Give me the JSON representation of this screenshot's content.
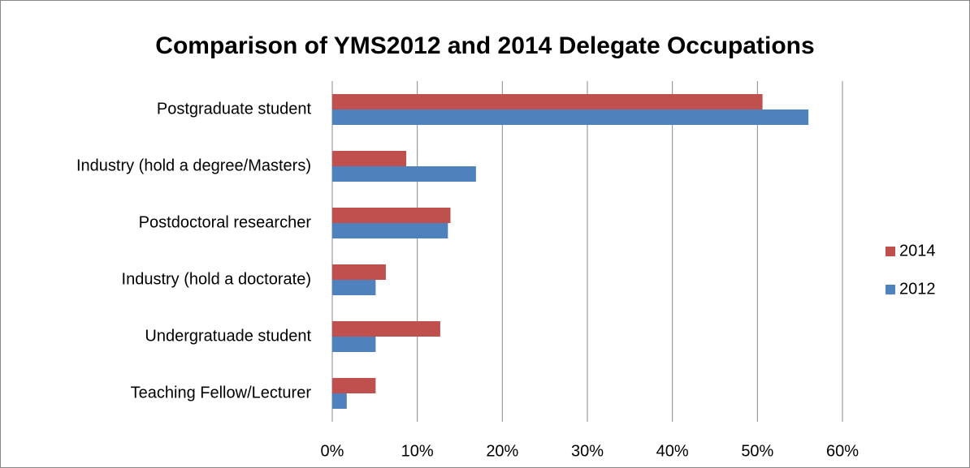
{
  "chart_data": {
    "type": "hbar",
    "title": "Comparison of YMS2012 and 2014 Delegate Occupations",
    "categories": [
      "Postgraduate student",
      "Industry (hold a degree/Masters)",
      "Postdoctoral researcher",
      "Industry (hold a doctorate)",
      "Undergratuade student",
      "Teaching Fellow/Lecturer"
    ],
    "series": [
      {
        "name": "2014",
        "color": "#c0504d",
        "values": [
          50.6,
          8.7,
          13.9,
          6.3,
          12.7,
          5.1
        ]
      },
      {
        "name": "2012",
        "color": "#4f81bd",
        "values": [
          56,
          16.9,
          13.6,
          5.1,
          5.1,
          1.7
        ]
      }
    ],
    "xlim": [
      0,
      60
    ],
    "xticks": [
      {
        "value": 0,
        "label": "0%"
      },
      {
        "value": 10,
        "label": "10%"
      },
      {
        "value": 20,
        "label": "20%"
      },
      {
        "value": 30,
        "label": "30%"
      },
      {
        "value": 40,
        "label": "40%"
      },
      {
        "value": 50,
        "label": "50%"
      },
      {
        "value": 60,
        "label": "60%"
      }
    ],
    "grid": true,
    "legend": "right"
  }
}
